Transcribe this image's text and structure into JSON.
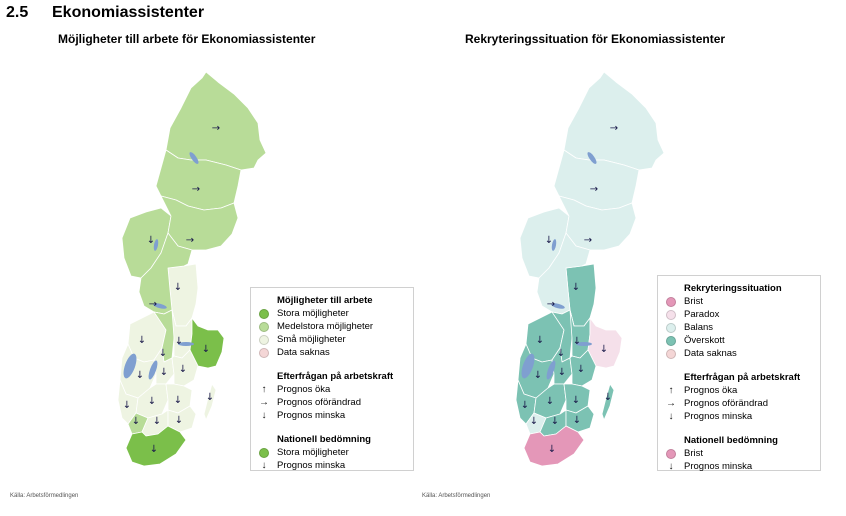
{
  "header": {
    "number": "2.5",
    "title": "Ekonomiassistenter"
  },
  "colors": {
    "stora": "#7bbf4a",
    "medelstora": "#b8dc98",
    "sma": "#eef4e2",
    "brist": "#e497b8",
    "paradox": "#f5e0ea",
    "balans": "#dcefed",
    "overskott": "#7cc2b3",
    "data_saknas": "#f4d6d6",
    "water": "#7f9fd0",
    "border": "#ffffff",
    "arrow": "#1a1a4a"
  },
  "map_left": {
    "title": "Möjligheter till arbete för Ekonomiassistenter",
    "source": "Källa: Arbetsförmedlingen",
    "legend": {
      "group1_title": "Möjligheter till arbete",
      "items1": [
        {
          "label": "Stora möjligheter",
          "color": "#7bbf4a"
        },
        {
          "label": "Medelstora möjligheter",
          "color": "#b8dc98"
        },
        {
          "label": "Små möjligheter",
          "color": "#eef4e2"
        },
        {
          "label": "Data saknas",
          "color": "#f4d6d6"
        }
      ],
      "group2_title": "Efterfrågan på arbetskraft",
      "items2": [
        {
          "label": "Prognos öka",
          "icon": "arrow-up-icon"
        },
        {
          "label": "Prognos oförändrad",
          "icon": "arrow-right-icon"
        },
        {
          "label": "Prognos minska",
          "icon": "arrow-down-icon"
        }
      ],
      "group3_title": "Nationell bedömning",
      "items3": [
        {
          "label": "Stora möjligheter",
          "color": "#7bbf4a"
        },
        {
          "label": "Prognos minska",
          "icon": "arrow-down-icon"
        }
      ]
    }
  },
  "map_right": {
    "title": "Rekryteringssituation för Ekonomiassistenter",
    "source": "Källa: Arbetsförmedlingen",
    "legend": {
      "group1_title": "Rekryteringssituation",
      "items1": [
        {
          "label": "Brist",
          "color": "#e497b8"
        },
        {
          "label": "Paradox",
          "color": "#f5e0ea"
        },
        {
          "label": "Balans",
          "color": "#dcefed"
        },
        {
          "label": "Överskott",
          "color": "#7cc2b3"
        },
        {
          "label": "Data saknas",
          "color": "#f4d6d6"
        }
      ],
      "group2_title": "Efterfrågan på arbetskraft",
      "items2": [
        {
          "label": "Prognos öka",
          "icon": "arrow-up-icon"
        },
        {
          "label": "Prognos oförändrad",
          "icon": "arrow-right-icon"
        },
        {
          "label": "Prognos minska",
          "icon": "arrow-down-icon"
        }
      ],
      "group3_title": "Nationell bedömning",
      "items3": [
        {
          "label": "Brist",
          "color": "#e497b8"
        },
        {
          "label": "Prognos minska",
          "icon": "arrow-down-icon"
        }
      ]
    }
  },
  "regions": [
    {
      "id": "r1",
      "left": "medelstora",
      "right": "balans",
      "arrow": "right"
    },
    {
      "id": "r2",
      "left": "medelstora",
      "right": "balans",
      "arrow": "right"
    },
    {
      "id": "r3",
      "left": "medelstora",
      "right": "balans",
      "arrow": "down"
    },
    {
      "id": "r4",
      "left": "medelstora",
      "right": "balans",
      "arrow": "right"
    },
    {
      "id": "r5",
      "left": "sma",
      "right": "overskott",
      "arrow": "down"
    },
    {
      "id": "r6",
      "left": "medelstora",
      "right": "balans",
      "arrow": "right"
    },
    {
      "id": "r7",
      "left": "sma",
      "right": "overskott",
      "arrow": "down"
    },
    {
      "id": "r8",
      "left": "medelstora",
      "right": "overskott",
      "arrow": "down"
    },
    {
      "id": "r9",
      "left": "sma",
      "right": "overskott",
      "arrow": "down"
    },
    {
      "id": "r10",
      "left": "stora",
      "right": "paradox",
      "arrow": "down"
    },
    {
      "id": "r11",
      "left": "sma",
      "right": "overskott",
      "arrow": "down"
    },
    {
      "id": "r12",
      "left": "sma",
      "right": "overskott",
      "arrow": "down"
    },
    {
      "id": "r13",
      "left": "sma",
      "right": "overskott",
      "arrow": "down"
    },
    {
      "id": "r14",
      "left": "sma",
      "right": "overskott",
      "arrow": "down"
    },
    {
      "id": "r15",
      "left": "sma",
      "right": "overskott",
      "arrow": "down"
    },
    {
      "id": "r16",
      "left": "sma",
      "right": "overskott",
      "arrow": "down"
    },
    {
      "id": "r17",
      "left": "medelstora",
      "right": "balans",
      "arrow": "down"
    },
    {
      "id": "r18",
      "left": "sma",
      "right": "overskott",
      "arrow": "down"
    },
    {
      "id": "r19",
      "left": "sma",
      "right": "overskott",
      "arrow": "down"
    },
    {
      "id": "r20",
      "left": "stora",
      "right": "brist",
      "arrow": "down"
    },
    {
      "id": "r21",
      "left": "sma",
      "right": "overskott",
      "arrow": "down"
    }
  ]
}
